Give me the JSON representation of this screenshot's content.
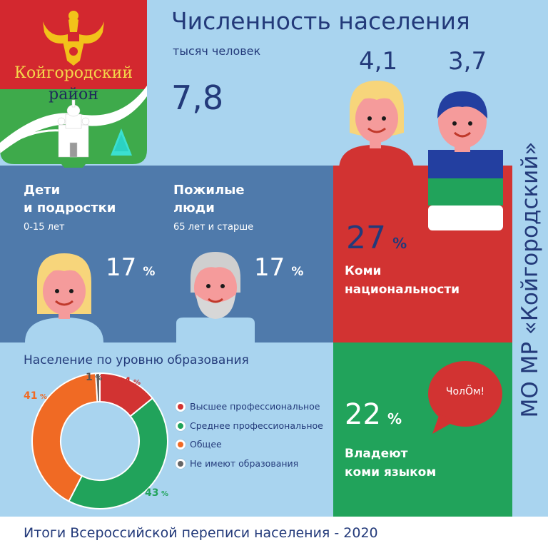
{
  "header": {
    "title": "Численность населения",
    "subtitle": "тысяч человек",
    "total": "7,8",
    "female": "4,1",
    "male": "3,7"
  },
  "emblem": {
    "line1": "Койгородский",
    "line2": "район"
  },
  "children": {
    "title_l1": "Дети",
    "title_l2": "и подростки",
    "ages": "0-15 лет",
    "value": "17",
    "unit": "%"
  },
  "elderly": {
    "title_l1": "Пожилые",
    "title_l2": "люди",
    "ages": "65 лет и старше",
    "value": "17",
    "unit": "%"
  },
  "komi_nationality": {
    "value": "27",
    "unit": "%",
    "label_l1": "Коми",
    "label_l2": "национальности"
  },
  "komi_language": {
    "value": "22",
    "unit": "%",
    "label_l1": "Владеют",
    "label_l2": "коми языком",
    "bubble": "ЧолӦм!"
  },
  "education": {
    "title": "Население по уровню образования"
  },
  "side_title": "МО МР «Койгородский»",
  "footer": "Итоги Всероссийской переписи населения - 2020",
  "chart_data": {
    "type": "pie",
    "title": "Население по уровню образования",
    "unit": "%",
    "slices": [
      {
        "label": "Высшее профессиональное",
        "value": 14,
        "color": "#d23332"
      },
      {
        "label": "Среднее профессиональное",
        "value": 43,
        "color": "#21a35b"
      },
      {
        "label": "Общее",
        "value": 41,
        "color": "#f06a24"
      },
      {
        "label": "Не имеют образования",
        "value": 1,
        "color": "#666666"
      }
    ],
    "legend": "right"
  },
  "colors": {
    "sky": "#a9d4ef",
    "slate": "#4f7aab",
    "red": "#d23332",
    "green": "#21a35b",
    "navy": "#233a7a",
    "orange": "#f06a24"
  }
}
